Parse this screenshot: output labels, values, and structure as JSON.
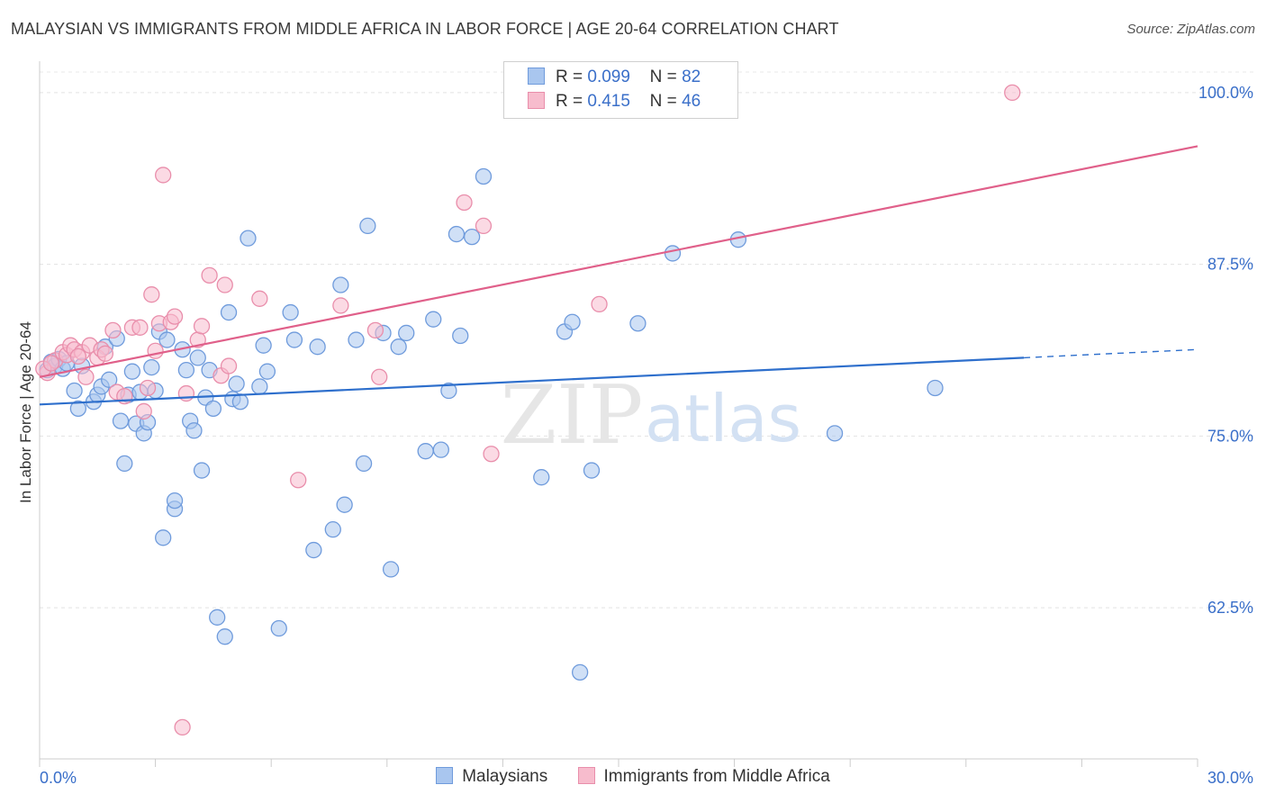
{
  "title": "MALAYSIAN VS IMMIGRANTS FROM MIDDLE AFRICA IN LABOR FORCE | AGE 20-64 CORRELATION CHART",
  "source": "Source: ZipAtlas.com",
  "watermark": {
    "zip": "ZIP",
    "atlas": "atlas"
  },
  "legend": {
    "r_label": "R =",
    "n_label": "N =",
    "series": [
      {
        "name": "Malaysians",
        "r": "0.099",
        "n": "82",
        "fill": "#a9c6ef",
        "stroke": "#6f9bdc"
      },
      {
        "name": "Immigrants from Middle Africa",
        "r": "0.415",
        "n": "46",
        "fill": "#f7bccd",
        "stroke": "#e98eab"
      }
    ]
  },
  "chart_data": {
    "type": "scatter",
    "title": "MALAYSIAN VS IMMIGRANTS FROM MIDDLE AFRICA IN LABOR FORCE | AGE 20-64 CORRELATION CHART",
    "xlabel": "",
    "ylabel": "In Labor Force | Age 20-64",
    "xlim": [
      0,
      30
    ],
    "ylim": [
      51.5,
      101.5
    ],
    "x_tick_labels": [
      {
        "value": 0,
        "label": "0.0%"
      },
      {
        "value": 30,
        "label": "30.0%"
      }
    ],
    "y_tick_labels": [
      {
        "value": 100,
        "label": "100.0%"
      },
      {
        "value": 87.5,
        "label": "87.5%"
      },
      {
        "value": 75,
        "label": "75.0%"
      },
      {
        "value": 62.5,
        "label": "62.5%"
      }
    ],
    "grid": true,
    "series": [
      {
        "name": "Malaysians",
        "color": "#6f9bdc",
        "fill": "#a9c6ef",
        "trend": {
          "x0": 0,
          "y0": 77.3,
          "x1": 25.5,
          "y1": 80.7,
          "dash_to_x": 30,
          "dash_to_y": 81.3
        },
        "points": [
          [
            0.2,
            79.8
          ],
          [
            0.3,
            80.4
          ],
          [
            0.4,
            80.1
          ],
          [
            0.5,
            80.6
          ],
          [
            0.6,
            79.9
          ],
          [
            0.7,
            80.3
          ],
          [
            0.9,
            78.3
          ],
          [
            1.0,
            77.0
          ],
          [
            1.1,
            80.1
          ],
          [
            1.4,
            77.5
          ],
          [
            1.5,
            78.0
          ],
          [
            1.6,
            78.6
          ],
          [
            1.7,
            81.5
          ],
          [
            1.8,
            79.1
          ],
          [
            2.0,
            82.1
          ],
          [
            2.1,
            76.1
          ],
          [
            2.2,
            73.0
          ],
          [
            2.3,
            78.0
          ],
          [
            2.4,
            79.7
          ],
          [
            2.5,
            75.9
          ],
          [
            2.6,
            78.2
          ],
          [
            2.7,
            75.2
          ],
          [
            2.8,
            76.0
          ],
          [
            2.9,
            80.0
          ],
          [
            3.0,
            78.3
          ],
          [
            3.1,
            82.6
          ],
          [
            3.2,
            67.6
          ],
          [
            3.3,
            82.0
          ],
          [
            3.5,
            69.7
          ],
          [
            3.5,
            70.3
          ],
          [
            3.7,
            81.3
          ],
          [
            3.8,
            79.8
          ],
          [
            3.9,
            76.1
          ],
          [
            4.0,
            75.4
          ],
          [
            4.1,
            80.7
          ],
          [
            4.2,
            72.5
          ],
          [
            4.3,
            77.8
          ],
          [
            4.4,
            79.8
          ],
          [
            4.5,
            77.0
          ],
          [
            4.6,
            61.8
          ],
          [
            4.8,
            60.4
          ],
          [
            4.9,
            84.0
          ],
          [
            5.0,
            77.7
          ],
          [
            5.1,
            78.8
          ],
          [
            5.2,
            77.5
          ],
          [
            5.4,
            89.4
          ],
          [
            5.7,
            78.6
          ],
          [
            5.8,
            81.6
          ],
          [
            5.9,
            79.7
          ],
          [
            6.2,
            61.0
          ],
          [
            6.5,
            84.0
          ],
          [
            6.6,
            82.0
          ],
          [
            7.1,
            66.7
          ],
          [
            7.2,
            81.5
          ],
          [
            7.6,
            68.2
          ],
          [
            7.8,
            86.0
          ],
          [
            7.9,
            70.0
          ],
          [
            8.2,
            82.0
          ],
          [
            8.4,
            73.0
          ],
          [
            8.5,
            90.3
          ],
          [
            8.9,
            82.5
          ],
          [
            9.1,
            65.3
          ],
          [
            9.3,
            81.5
          ],
          [
            9.5,
            82.5
          ],
          [
            10.0,
            73.9
          ],
          [
            10.2,
            83.5
          ],
          [
            10.4,
            74.0
          ],
          [
            10.6,
            78.3
          ],
          [
            10.8,
            89.7
          ],
          [
            10.9,
            82.3
          ],
          [
            11.2,
            89.5
          ],
          [
            11.5,
            93.9
          ],
          [
            13.0,
            72.0
          ],
          [
            13.6,
            82.6
          ],
          [
            13.8,
            83.3
          ],
          [
            14.0,
            57.8
          ],
          [
            14.3,
            72.5
          ],
          [
            15.5,
            83.2
          ],
          [
            16.4,
            88.3
          ],
          [
            18.1,
            89.3
          ],
          [
            20.6,
            75.2
          ],
          [
            23.2,
            78.5
          ]
        ]
      },
      {
        "name": "Immigrants from Middle Africa",
        "color": "#e98eab",
        "fill": "#f7bccd",
        "trend": {
          "x0": 0,
          "y0": 79.3,
          "x1": 30,
          "y1": 96.1
        },
        "points": [
          [
            0.2,
            79.6
          ],
          [
            0.4,
            80.5
          ],
          [
            0.6,
            81.1
          ],
          [
            0.7,
            80.9
          ],
          [
            0.8,
            81.6
          ],
          [
            0.9,
            81.3
          ],
          [
            1.1,
            81.1
          ],
          [
            1.2,
            79.3
          ],
          [
            1.3,
            81.6
          ],
          [
            1.5,
            80.7
          ],
          [
            1.6,
            81.3
          ],
          [
            1.7,
            81.0
          ],
          [
            1.9,
            82.7
          ],
          [
            2.0,
            78.2
          ],
          [
            2.2,
            77.9
          ],
          [
            2.4,
            82.9
          ],
          [
            2.6,
            82.9
          ],
          [
            2.7,
            76.8
          ],
          [
            2.8,
            78.5
          ],
          [
            2.9,
            85.3
          ],
          [
            3.0,
            81.2
          ],
          [
            3.1,
            83.2
          ],
          [
            3.2,
            94.0
          ],
          [
            3.4,
            83.3
          ],
          [
            3.5,
            83.7
          ],
          [
            3.7,
            53.8
          ],
          [
            3.8,
            78.1
          ],
          [
            4.1,
            82.0
          ],
          [
            4.2,
            83.0
          ],
          [
            4.4,
            86.7
          ],
          [
            4.7,
            79.4
          ],
          [
            4.8,
            86.0
          ],
          [
            4.9,
            80.1
          ],
          [
            5.7,
            85.0
          ],
          [
            6.7,
            71.8
          ],
          [
            7.8,
            84.5
          ],
          [
            8.7,
            82.7
          ],
          [
            8.8,
            79.3
          ],
          [
            11.0,
            92.0
          ],
          [
            11.5,
            90.3
          ],
          [
            11.7,
            73.7
          ],
          [
            14.5,
            84.6
          ],
          [
            25.2,
            100.0
          ],
          [
            0.1,
            79.9
          ],
          [
            0.3,
            80.3
          ],
          [
            1.0,
            80.8
          ]
        ]
      }
    ]
  }
}
